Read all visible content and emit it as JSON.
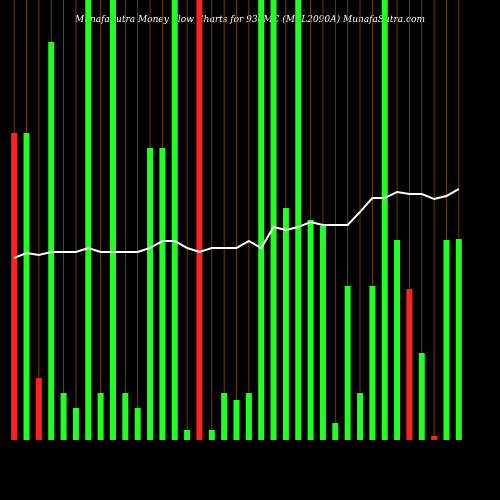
{
  "chart_data": {
    "type": "bar",
    "title": "MunafaSutra  Money Flow Charts for 938MC (MFL2090A) MunafaSutra.com",
    "categories": [
      null,
      null,
      null,
      null,
      null,
      null,
      null,
      null,
      null,
      null,
      null,
      null,
      null,
      null,
      null,
      null,
      null,
      null,
      null,
      null,
      null,
      null,
      null,
      null,
      null,
      null,
      null,
      null,
      null,
      null,
      null,
      null,
      null,
      null,
      null,
      null,
      null
    ],
    "values": [
      307,
      307,
      62,
      398,
      47,
      32,
      440,
      47,
      440,
      47,
      32,
      292,
      292,
      440,
      10,
      440,
      10,
      47,
      40,
      47,
      440,
      440,
      232,
      440,
      220,
      214,
      17,
      154,
      47,
      154,
      440,
      200,
      151,
      87,
      4,
      200,
      201
    ],
    "colors": [
      "#ff2020",
      "#22ff22",
      "#ff2020",
      "#22ff22",
      "#22ff22",
      "#22ff22",
      "#22ff22",
      "#22ff22",
      "#22ff22",
      "#22ff22",
      "#22ff22",
      "#22ff22",
      "#22ff22",
      "#22ff22",
      "#22ff22",
      "#ff2020",
      "#22ff22",
      "#22ff22",
      "#22ff22",
      "#22ff22",
      "#22ff22",
      "#22ff22",
      "#22ff22",
      "#22ff22",
      "#22ff22",
      "#22ff22",
      "#22ff22",
      "#22ff22",
      "#22ff22",
      "#22ff22",
      "#22ff22",
      "#22ff22",
      "#ff2020",
      "#22ff22",
      "#ff2020",
      "#22ff22",
      "#22ff22"
    ],
    "line_values": [
      182,
      187,
      185,
      188,
      188,
      188,
      192,
      188,
      188,
      188,
      188,
      192,
      199,
      199,
      192,
      188,
      192,
      192,
      192,
      199,
      192,
      213,
      210,
      213,
      218,
      215,
      215,
      215,
      228,
      242,
      242,
      248,
      246,
      246,
      241,
      244,
      251
    ],
    "line_color": "#ffffff",
    "ylim": [
      0,
      440
    ],
    "grid": true,
    "grid_color": "#8a4a00"
  }
}
